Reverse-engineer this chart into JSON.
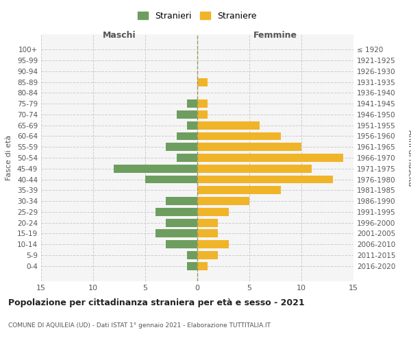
{
  "age_groups": [
    "100+",
    "95-99",
    "90-94",
    "85-89",
    "80-84",
    "75-79",
    "70-74",
    "65-69",
    "60-64",
    "55-59",
    "50-54",
    "45-49",
    "40-44",
    "35-39",
    "30-34",
    "25-29",
    "20-24",
    "15-19",
    "10-14",
    "5-9",
    "0-4"
  ],
  "birth_years": [
    "≤ 1920",
    "1921-1925",
    "1926-1930",
    "1931-1935",
    "1936-1940",
    "1941-1945",
    "1946-1950",
    "1951-1955",
    "1956-1960",
    "1961-1965",
    "1966-1970",
    "1971-1975",
    "1976-1980",
    "1981-1985",
    "1986-1990",
    "1991-1995",
    "1996-2000",
    "2001-2005",
    "2006-2010",
    "2011-2015",
    "2016-2020"
  ],
  "males": [
    0,
    0,
    0,
    0,
    0,
    1,
    2,
    1,
    2,
    3,
    2,
    8,
    5,
    0,
    3,
    4,
    3,
    4,
    3,
    1,
    1
  ],
  "females": [
    0,
    0,
    0,
    1,
    0,
    1,
    1,
    6,
    8,
    10,
    14,
    11,
    13,
    8,
    5,
    3,
    2,
    2,
    3,
    2,
    1
  ],
  "male_color": "#6e9e5f",
  "female_color": "#f0b429",
  "grid_color": "#cccccc",
  "center_line_color": "#999966",
  "title": "Popolazione per cittadinanza straniera per età e sesso - 2021",
  "subtitle": "COMUNE DI AQUILEIA (UD) - Dati ISTAT 1° gennaio 2021 - Elaborazione TUTTITALIA.IT",
  "ylabel_left": "Fasce di età",
  "ylabel_right": "Anni di nascita",
  "xlabel_left": "Maschi",
  "xlabel_right": "Femmine",
  "legend_male": "Stranieri",
  "legend_female": "Straniere",
  "xlim": 15,
  "bg_color": "#ffffff",
  "plot_bg_color": "#f5f5f5"
}
